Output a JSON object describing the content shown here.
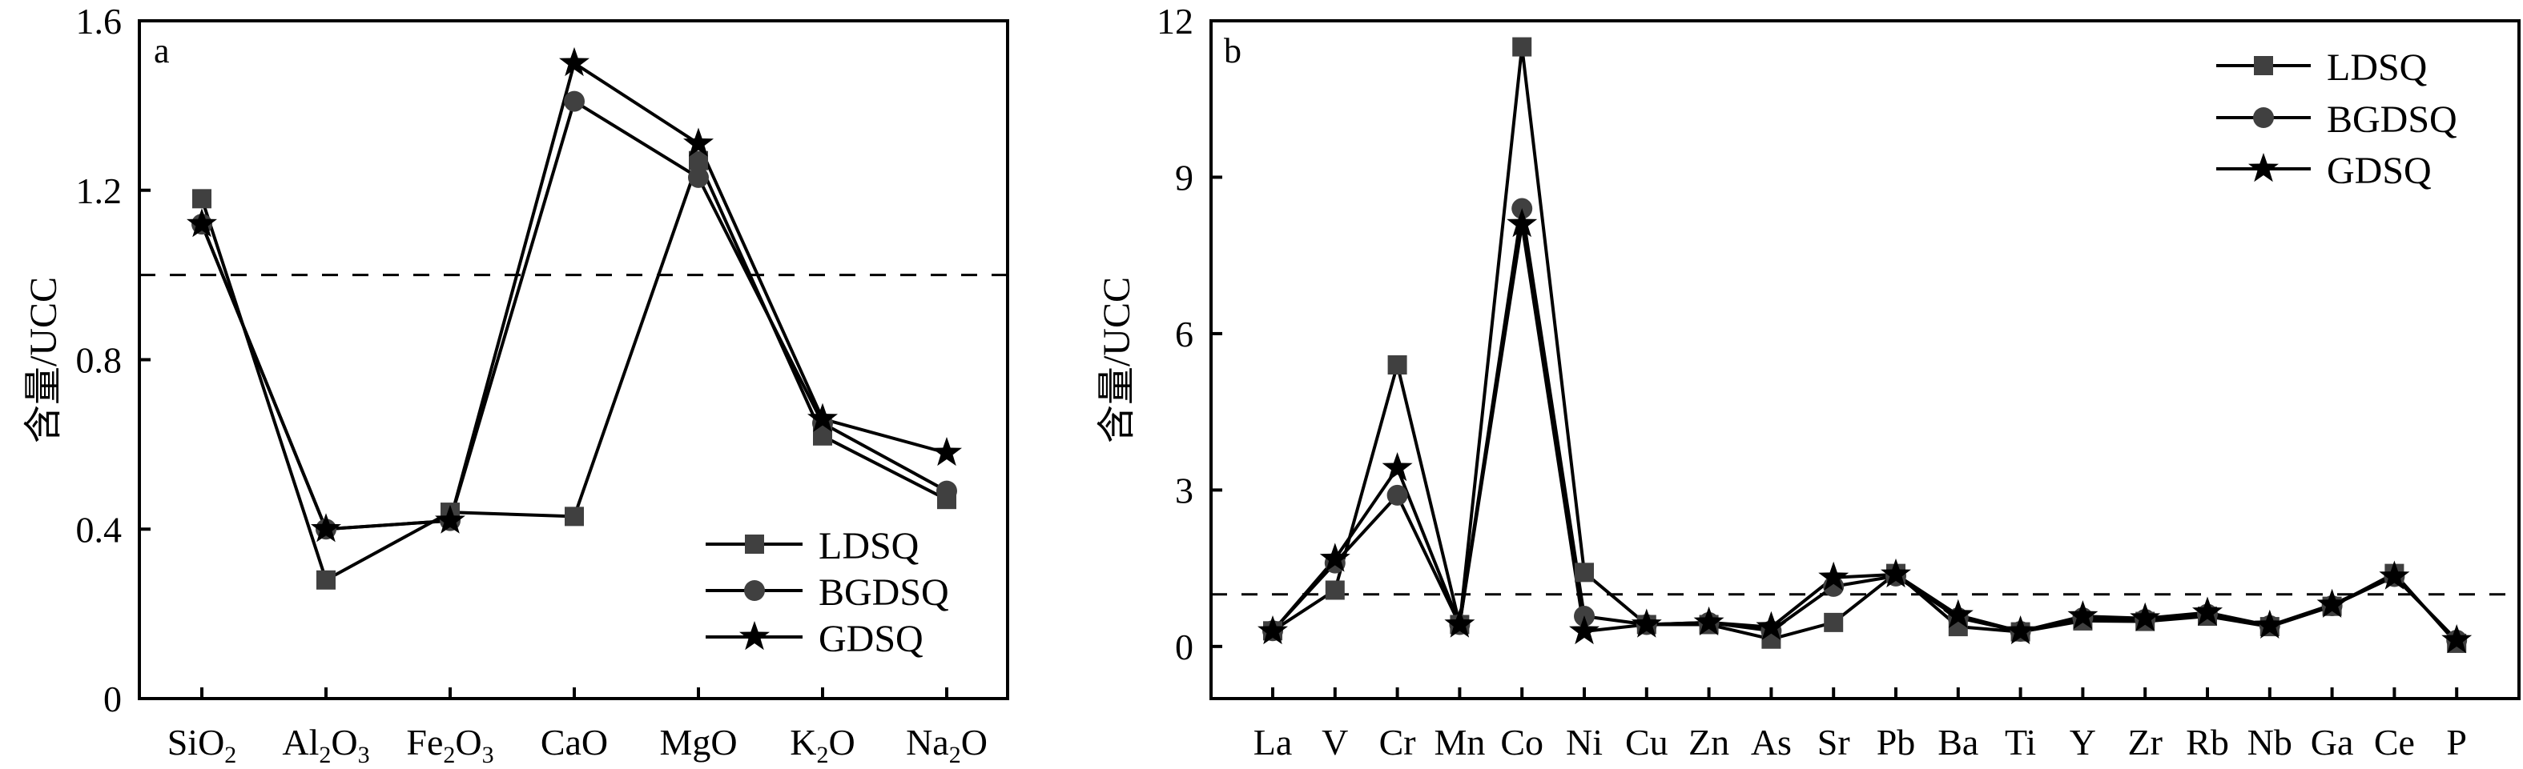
{
  "figure": {
    "background": "#ffffff"
  },
  "chart_data": [
    {
      "panel": "a",
      "type": "line",
      "title": "",
      "xlabel": "",
      "ylabel": "含量/UCC",
      "categories": [
        {
          "base": "SiO",
          "subs": [
            [
              "2",
              1
            ]
          ],
          "text": "SiO2"
        },
        {
          "parts": [
            [
              "Al",
              0
            ],
            [
              "2",
              1
            ],
            [
              "O",
              0
            ],
            [
              "3",
              1
            ]
          ],
          "text": "Al2O3"
        },
        {
          "parts": [
            [
              "Fe",
              0
            ],
            [
              "2",
              1
            ],
            [
              "O",
              0
            ],
            [
              "3",
              1
            ]
          ],
          "text": "Fe2O3"
        },
        {
          "parts": [
            [
              "CaO",
              0
            ]
          ],
          "text": "CaO"
        },
        {
          "parts": [
            [
              "MgO",
              0
            ]
          ],
          "text": "MgO"
        },
        {
          "parts": [
            [
              "K",
              0
            ],
            [
              "2",
              1
            ],
            [
              "O",
              0
            ]
          ],
          "text": "K2O"
        },
        {
          "parts": [
            [
              "Na",
              0
            ],
            [
              "2",
              1
            ],
            [
              "O",
              0
            ]
          ],
          "text": "Na2O"
        }
      ],
      "ylim": [
        0,
        1.6
      ],
      "yticks": [
        0,
        0.4,
        0.8,
        1.2,
        1.6
      ],
      "ytick_labels": [
        "0",
        "0.4",
        "0.8",
        "1.2",
        "1.6"
      ],
      "reference_line": {
        "y": 1.0,
        "style": "dashed"
      },
      "grid": false,
      "legend": {
        "placement": "bottom-right"
      },
      "series": [
        {
          "name": "LDSQ",
          "marker": "square",
          "color": "#404040",
          "values": [
            1.18,
            0.28,
            0.44,
            0.43,
            1.27,
            0.62,
            0.47
          ]
        },
        {
          "name": "BGDSQ",
          "marker": "circle",
          "color": "#404040",
          "values": [
            1.12,
            0.4,
            0.42,
            1.41,
            1.23,
            0.65,
            0.49
          ]
        },
        {
          "name": "GDSQ",
          "marker": "star",
          "color": "#000000",
          "values": [
            1.12,
            0.4,
            0.42,
            1.5,
            1.31,
            0.66,
            0.58
          ]
        }
      ]
    },
    {
      "panel": "b",
      "type": "line",
      "title": "",
      "xlabel": "",
      "ylabel": "含量/UCC",
      "categories": [
        {
          "parts": [
            [
              "La",
              0
            ]
          ],
          "text": "La"
        },
        {
          "parts": [
            [
              "V",
              0
            ]
          ],
          "text": "V"
        },
        {
          "parts": [
            [
              "Cr",
              0
            ]
          ],
          "text": "Cr"
        },
        {
          "parts": [
            [
              "Mn",
              0
            ]
          ],
          "text": "Mn"
        },
        {
          "parts": [
            [
              "Co",
              0
            ]
          ],
          "text": "Co"
        },
        {
          "parts": [
            [
              "Ni",
              0
            ]
          ],
          "text": "Ni"
        },
        {
          "parts": [
            [
              "Cu",
              0
            ]
          ],
          "text": "Cu"
        },
        {
          "parts": [
            [
              "Zn",
              0
            ]
          ],
          "text": "Zn"
        },
        {
          "parts": [
            [
              "As",
              0
            ]
          ],
          "text": "As"
        },
        {
          "parts": [
            [
              "Sr",
              0
            ]
          ],
          "text": "Sr"
        },
        {
          "parts": [
            [
              "Pb",
              0
            ]
          ],
          "text": "Pb"
        },
        {
          "parts": [
            [
              "Ba",
              0
            ]
          ],
          "text": "Ba"
        },
        {
          "parts": [
            [
              "Ti",
              0
            ]
          ],
          "text": "Ti"
        },
        {
          "parts": [
            [
              "Y",
              0
            ]
          ],
          "text": "Y"
        },
        {
          "parts": [
            [
              "Zr",
              0
            ]
          ],
          "text": "Zr"
        },
        {
          "parts": [
            [
              "Rb",
              0
            ]
          ],
          "text": "Rb"
        },
        {
          "parts": [
            [
              "Nb",
              0
            ]
          ],
          "text": "Nb"
        },
        {
          "parts": [
            [
              "Ga",
              0
            ]
          ],
          "text": "Ga"
        },
        {
          "parts": [
            [
              "Ce",
              0
            ]
          ],
          "text": "Ce"
        },
        {
          "parts": [
            [
              "P",
              0
            ]
          ],
          "text": "P"
        }
      ],
      "ylim": [
        -1,
        12
      ],
      "yticks": [
        0,
        3,
        6,
        9,
        12
      ],
      "ytick_labels": [
        "0",
        "3",
        "6",
        "9",
        "12"
      ],
      "reference_line": {
        "y": 1.0,
        "style": "dashed"
      },
      "grid": false,
      "legend": {
        "placement": "top-right"
      },
      "series": [
        {
          "name": "LDSQ",
          "marker": "square",
          "color": "#404040",
          "values": [
            0.3,
            1.08,
            5.4,
            0.42,
            11.5,
            1.42,
            0.42,
            0.42,
            0.14,
            0.46,
            1.4,
            0.38,
            0.28,
            0.49,
            0.48,
            0.58,
            0.38,
            0.77,
            1.4,
            0.06
          ]
        },
        {
          "name": "BGDSQ",
          "marker": "circle",
          "color": "#404040",
          "values": [
            0.3,
            1.6,
            2.9,
            0.42,
            8.4,
            0.58,
            0.42,
            0.46,
            0.3,
            1.15,
            1.35,
            0.55,
            0.29,
            0.55,
            0.52,
            0.62,
            0.4,
            0.78,
            1.34,
            0.12
          ]
        },
        {
          "name": "GDSQ",
          "marker": "star",
          "color": "#000000",
          "values": [
            0.29,
            1.68,
            3.42,
            0.42,
            8.1,
            0.29,
            0.42,
            0.46,
            0.37,
            1.32,
            1.38,
            0.6,
            0.29,
            0.58,
            0.54,
            0.65,
            0.4,
            0.8,
            1.34,
            0.12
          ]
        }
      ]
    }
  ]
}
